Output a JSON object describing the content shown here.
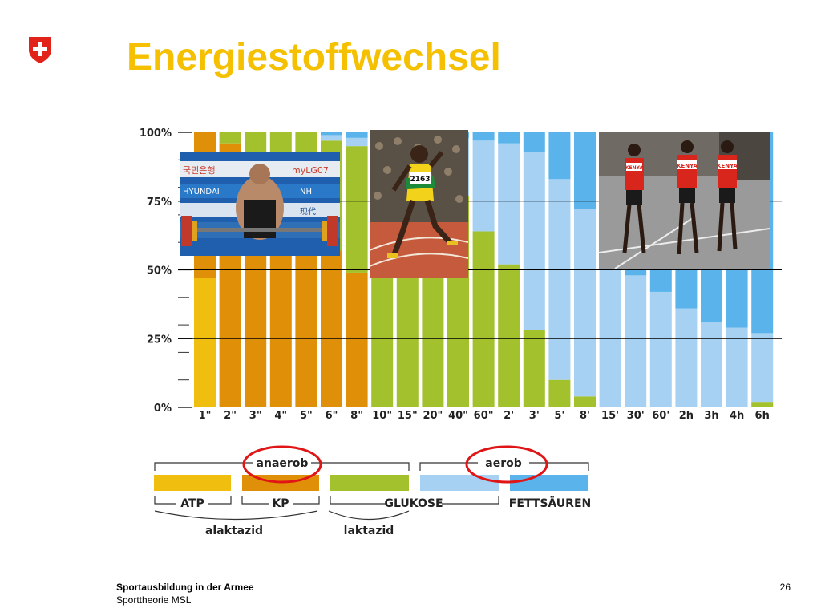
{
  "slide": {
    "title": "Energiestoffwechsel",
    "footer_org": "Sportausbildung in der Armee",
    "footer_sub": "Sporttheorie MSL",
    "page_number": "26"
  },
  "colors": {
    "ATP": "#efbe0e",
    "KP": "#e09008",
    "GLUKOSE": "#a2c12d",
    "GLUKOSE_aerob": "#a6d1f3",
    "FETTSAEUREN": "#5ab4eb",
    "circle": "#e01515",
    "title": "#f5c000"
  },
  "chart_data": {
    "type": "bar",
    "stacked": true,
    "categories": [
      "1\"",
      "2\"",
      "3\"",
      "4\"",
      "5\"",
      "6\"",
      "8\"",
      "10\"",
      "15\"",
      "20\"",
      "40\"",
      "60\"",
      "2'",
      "3'",
      "5'",
      "8'",
      "15'",
      "30'",
      "60'",
      "2h",
      "3h",
      "4h",
      "6h"
    ],
    "yticks": [
      "0%",
      "25%",
      "50%",
      "75%",
      "100%"
    ],
    "ylim": [
      0,
      100
    ],
    "grid_lines": [
      25,
      50,
      75
    ],
    "series": [
      {
        "name": "ATP",
        "color": "#efbe0e",
        "values": [
          47,
          0,
          0,
          0,
          0,
          0,
          0,
          0,
          0,
          0,
          0,
          0,
          0,
          0,
          0,
          0,
          0,
          0,
          0,
          0,
          0,
          0,
          0
        ]
      },
      {
        "name": "KP",
        "color": "#e09008",
        "values": [
          53,
          96,
          91,
          82,
          74,
          57,
          49,
          0,
          0,
          0,
          0,
          0,
          0,
          0,
          0,
          0,
          0,
          0,
          0,
          0,
          0,
          0,
          0
        ]
      },
      {
        "name": "GLUKOSE (anaerob)",
        "color": "#a2c12d",
        "values": [
          0,
          4,
          9,
          18,
          26,
          40,
          46,
          93,
          89,
          81,
          77,
          64,
          52,
          28,
          10,
          4,
          0,
          0,
          0,
          0,
          0,
          0,
          2
        ]
      },
      {
        "name": "GLUKOSE (aerob)",
        "color": "#a6d1f3",
        "values": [
          0,
          0,
          0,
          0,
          0,
          2,
          3,
          5,
          9,
          17,
          21,
          33,
          44,
          65,
          73,
          68,
          54,
          48,
          42,
          36,
          31,
          29,
          25
        ]
      },
      {
        "name": "FETTSÄUREN",
        "color": "#5ab4eb",
        "values": [
          0,
          0,
          0,
          0,
          0,
          1,
          2,
          2,
          2,
          2,
          2,
          3,
          4,
          7,
          17,
          28,
          46,
          52,
          58,
          64,
          69,
          71,
          73
        ]
      }
    ],
    "legend": {
      "top_labels": [
        "anaerob",
        "aerob"
      ],
      "source_labels": [
        "ATP",
        "KP",
        "GLUKOSE",
        "FETTSÄUREN"
      ],
      "group_labels": [
        "alaktazid",
        "laktazid"
      ]
    }
  },
  "photos": {
    "weightlifter_banner_texts": [
      "국민은행",
      "myLG07",
      "HYUNDAI",
      "NH",
      "现代"
    ],
    "sprinter_bib": "2163",
    "runner_bibs": [
      "KENYA",
      "KENYA",
      "KENYA"
    ]
  }
}
